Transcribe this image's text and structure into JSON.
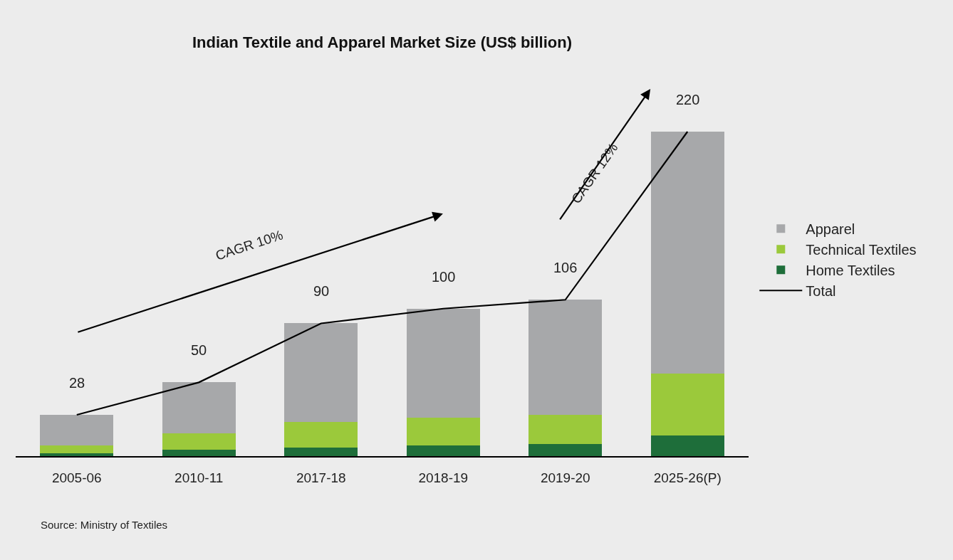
{
  "chart_data": {
    "type": "bar",
    "title": "Indian Textile and Apparel Market Size (US$ billion)",
    "categories": [
      "2005-06",
      "2010-11",
      "2017-18",
      "2018-19",
      "2019-20",
      "2025-26(P)"
    ],
    "stacked": true,
    "series": [
      {
        "name": "Home Textiles",
        "color": "#1e6e3a",
        "values": [
          2,
          4.5,
          6,
          7,
          8,
          14
        ]
      },
      {
        "name": "Technical Textiles",
        "color": "#9bc93b",
        "values": [
          5,
          10.8,
          17,
          19,
          20,
          42
        ]
      },
      {
        "name": "Apparel",
        "color": "#a7a8aa",
        "values": [
          21,
          34.7,
          67,
          74,
          78,
          164
        ]
      },
      {
        "name": "Total",
        "type": "line",
        "color": "#000000",
        "values": [
          28,
          50,
          90,
          100,
          106,
          220
        ],
        "value_labels": [
          "28",
          "50",
          "90",
          "100",
          "106",
          "220"
        ]
      }
    ],
    "annotations": [
      "CAGR 10%",
      "CAGR 12%",
      "Source: Ministry of Textiles"
    ],
    "legend": "right",
    "grid": false,
    "tick_labels": "x",
    "marker": "none",
    "line_style": "solid"
  }
}
